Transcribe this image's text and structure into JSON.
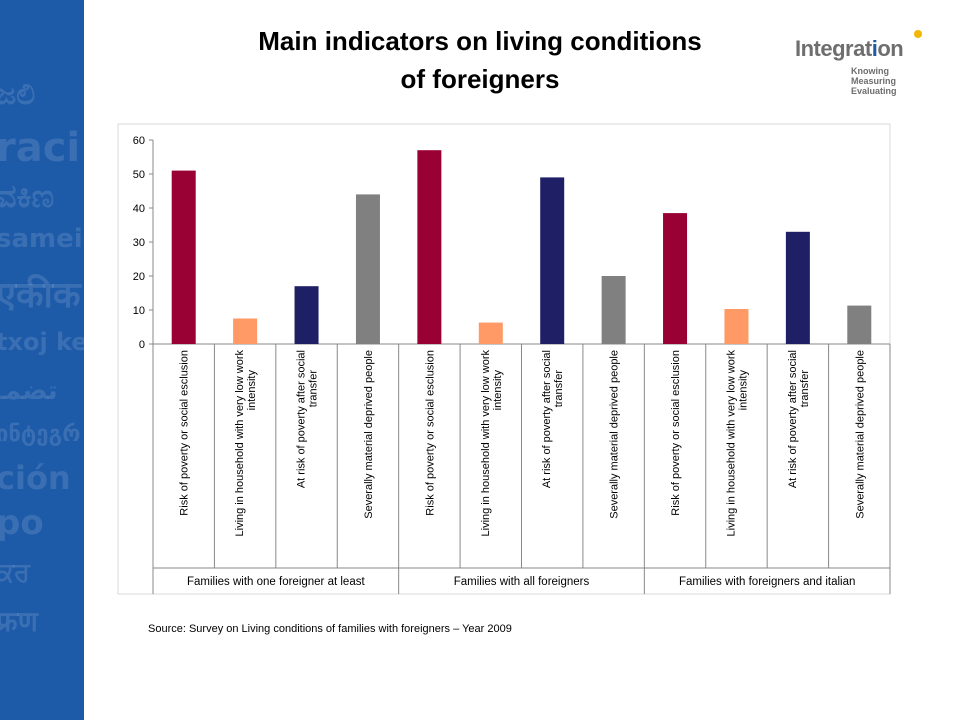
{
  "slide": {
    "title_line1": "Main indicators on living conditions",
    "title_line2": "of foreigners",
    "source": "Source: Survey on Living conditions of families with foreigners – Year 2009"
  },
  "logo": {
    "word_main": "Integrat",
    "word_i": "i",
    "word_end": "on",
    "tag1": "Knowing",
    "tag2": "Measuring",
    "tag3": "Evaluating"
  },
  "watermark": [
    "ಜಲಿ",
    "raci",
    "ವಕಿಣ",
    "sameini",
    "एकीक",
    "txoj ke",
    "تضمـ",
    "ინტეგრ",
    "ción",
    "po",
    "ਕਰ",
    "फ्रण"
  ],
  "colors": {
    "side_panel": "#1d5aa8",
    "risk": "#990033",
    "low_work": "#ff9966",
    "poverty": "#1f1f66",
    "deprived": "#808080"
  },
  "chart_data": {
    "type": "bar",
    "ylim": [
      0,
      60
    ],
    "yticks": [
      0,
      10,
      20,
      30,
      40,
      50,
      60
    ],
    "grid": false,
    "legend": "none",
    "groups": [
      {
        "label": "Families with one foreigner at least",
        "bars": [
          {
            "category": "Risk of poverty or social esclusion",
            "value": 51,
            "color_key": "risk"
          },
          {
            "category": "Living in household with very low work intensity",
            "value": 7.5,
            "color_key": "low_work"
          },
          {
            "category": "At risk of poverty after social transfer",
            "value": 17,
            "color_key": "poverty"
          },
          {
            "category": "Severally material deprived people",
            "value": 44,
            "color_key": "deprived"
          }
        ]
      },
      {
        "label": "Families with all foreigners",
        "bars": [
          {
            "category": "Risk of poverty or social esclusion",
            "value": 57,
            "color_key": "risk"
          },
          {
            "category": "Living in household with very low work intensity",
            "value": 6.3,
            "color_key": "low_work"
          },
          {
            "category": "At risk of poverty after social transfer",
            "value": 49,
            "color_key": "poverty"
          },
          {
            "category": "Severally material deprived people",
            "value": 20,
            "color_key": "deprived"
          }
        ]
      },
      {
        "label": "Families with foreigners and italian",
        "bars": [
          {
            "category": "Risk of poverty or social esclusion",
            "value": 38.5,
            "color_key": "risk"
          },
          {
            "category": "Living in household with very low work intensity",
            "value": 10.3,
            "color_key": "low_work"
          },
          {
            "category": "At risk of poverty after social transfer",
            "value": 33,
            "color_key": "poverty"
          },
          {
            "category": "Severally material deprived people",
            "value": 11.3,
            "color_key": "deprived"
          }
        ]
      }
    ]
  }
}
